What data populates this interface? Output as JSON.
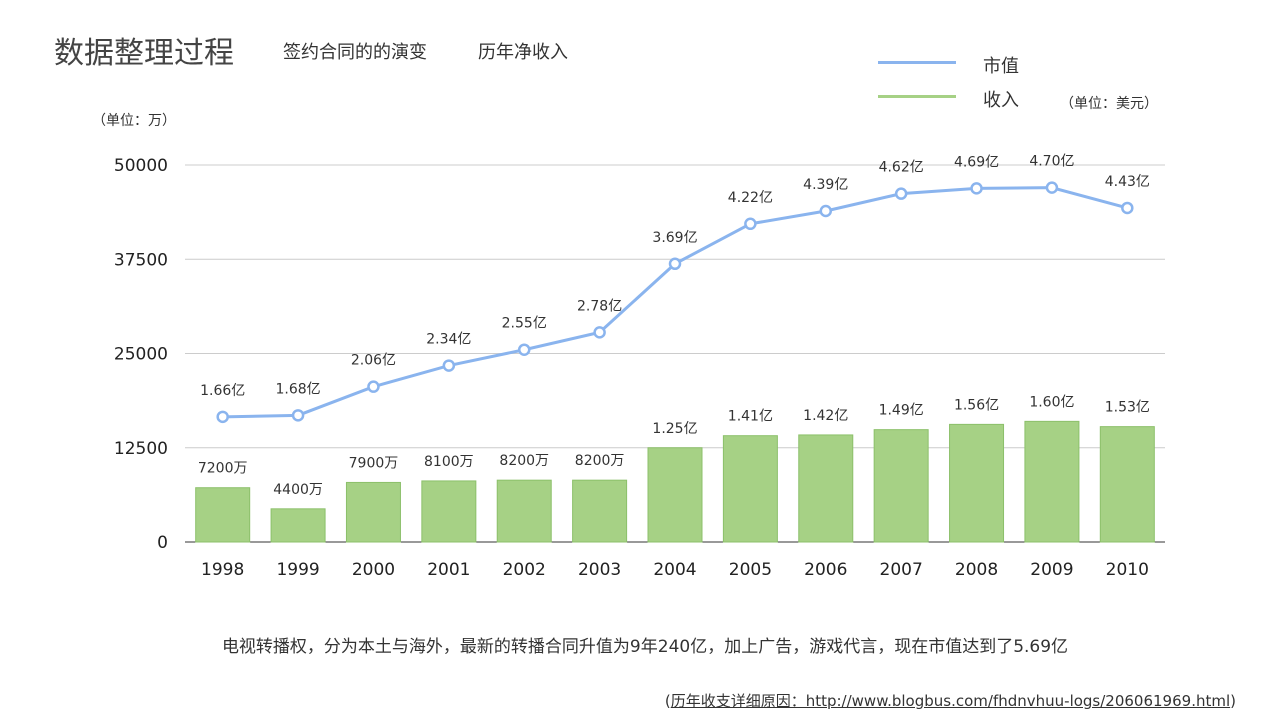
{
  "header": {
    "title": "数据整理过程",
    "tabs": [
      "签约合同的的演变",
      "历年净收入"
    ]
  },
  "left_unit": "（单位：万）",
  "right_unit": "（单位：美元）",
  "caption": "电视转播权，分为本土与海外，最新的转播合同升值为9年240亿，加上广告，游戏代言，现在市值达到了5.69亿",
  "source": {
    "prefix": "(",
    "link": "历年收支详细原因：http://www.blogbus.com/fhdnvhuu-logs/206061969.html",
    "suffix": ")"
  },
  "chart_data": {
    "type": "bar+line",
    "categories": [
      "1998",
      "1999",
      "2000",
      "2001",
      "2002",
      "2003",
      "2004",
      "2005",
      "2006",
      "2007",
      "2008",
      "2009",
      "2010"
    ],
    "ylim": [
      0,
      50000
    ],
    "yticks": [
      "0",
      "12500",
      "25000",
      "37500",
      "50000"
    ],
    "grid": true,
    "legend_placement": "top-right",
    "series": [
      {
        "name": "市值",
        "type": "line",
        "color": "#8ab4ee",
        "values": [
          16600,
          16800,
          20600,
          23400,
          25500,
          27800,
          36900,
          42200,
          43900,
          46200,
          46900,
          47000,
          44300
        ],
        "labels": [
          "1.66亿",
          "1.68亿",
          "2.06亿",
          "2.34亿",
          "2.55亿",
          "2.78亿",
          "3.69亿",
          "4.22亿",
          "4.39亿",
          "4.62亿",
          "4.69亿",
          "4.70亿",
          "4.43亿"
        ]
      },
      {
        "name": "收入",
        "type": "bar",
        "color": "#a6d185",
        "values": [
          7200,
          4400,
          7900,
          8100,
          8200,
          8200,
          12500,
          14100,
          14200,
          14900,
          15600,
          16000,
          15300
        ],
        "labels": [
          "7200万",
          "4400万",
          "7900万",
          "8100万",
          "8200万",
          "8200万",
          "1.25亿",
          "1.41亿",
          "1.42亿",
          "1.49亿",
          "1.56亿",
          "1.60亿",
          "1.53亿"
        ]
      }
    ]
  }
}
